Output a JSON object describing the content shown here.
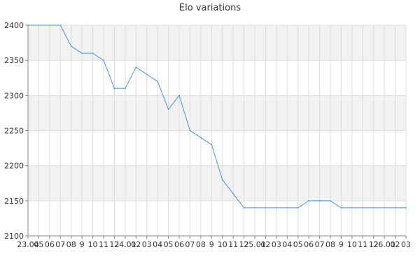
{
  "chart_data": {
    "type": "line",
    "title": "Elo variations",
    "xlabel": "",
    "ylabel": "",
    "ylim": [
      2100,
      2400
    ],
    "yticks": [
      2100,
      2150,
      2200,
      2250,
      2300,
      2350,
      2400
    ],
    "grid": true,
    "legend": "none",
    "x_tick_labels": [
      "23.04",
      "05",
      "06",
      "07",
      "08",
      "9",
      "10",
      "11",
      "12",
      "24.01",
      "02",
      "03",
      "04",
      "05",
      "06",
      "07",
      "08",
      "9",
      "10",
      "11",
      "12",
      "25.01",
      "02",
      "03",
      "04",
      "05",
      "06",
      "07",
      "08",
      "9",
      "10",
      "11",
      "12",
      "26.01",
      "02",
      "03"
    ],
    "series": [
      {
        "values": [
          2400,
          2400,
          2400,
          2400,
          2370,
          2360,
          2360,
          2350,
          2310,
          2310,
          2340,
          2330,
          2320,
          2280,
          2300,
          2250,
          2240,
          2230,
          2180,
          2160,
          2140,
          2140,
          2140,
          2140,
          2140,
          2140,
          2150,
          2150,
          2150,
          2140,
          2140,
          2140,
          2140,
          2140,
          2140,
          2140
        ],
        "color": "#4a90e2"
      }
    ],
    "band_color": "#f2f2f2",
    "grid_color": "#dddddd",
    "axis_color": "#888888"
  }
}
